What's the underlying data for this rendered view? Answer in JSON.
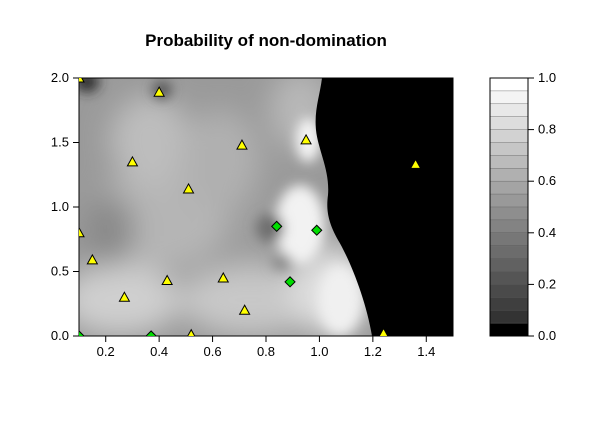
{
  "chart_data": {
    "type": "heatmap",
    "title": "Probability of non-domination",
    "xlabel": "",
    "ylabel": "",
    "xlim": [
      0.1,
      1.5
    ],
    "ylim": [
      0.0,
      2.0
    ],
    "x_ticks": [
      "0.2",
      "0.4",
      "0.6",
      "0.8",
      "1.0",
      "1.2",
      "1.4"
    ],
    "y_ticks": [
      "0.0",
      "0.5",
      "1.0",
      "1.5",
      "2.0"
    ],
    "colorbar": {
      "range": [
        0.0,
        1.0
      ],
      "levels": 20,
      "ticks": [
        "0.0",
        "0.2",
        "0.4",
        "0.6",
        "0.8",
        "1.0"
      ],
      "low_color": "#000000",
      "high_color": "#ffffff"
    },
    "series": [
      {
        "marker": "triangle",
        "color": "#ffff00",
        "points": [
          {
            "x": 0.1,
            "y": 2.0
          },
          {
            "x": 0.4,
            "y": 1.89
          },
          {
            "x": 0.3,
            "y": 1.35
          },
          {
            "x": 0.71,
            "y": 1.48
          },
          {
            "x": 0.95,
            "y": 1.52
          },
          {
            "x": 1.36,
            "y": 1.33
          },
          {
            "x": 0.51,
            "y": 1.14
          },
          {
            "x": 0.1,
            "y": 0.8
          },
          {
            "x": 0.15,
            "y": 0.59
          },
          {
            "x": 0.27,
            "y": 0.3
          },
          {
            "x": 0.43,
            "y": 0.43
          },
          {
            "x": 0.64,
            "y": 0.45
          },
          {
            "x": 0.72,
            "y": 0.2
          },
          {
            "x": 0.52,
            "y": 0.01
          },
          {
            "x": 1.24,
            "y": 0.02
          }
        ]
      },
      {
        "marker": "diamond",
        "color": "#00dd00",
        "points": [
          {
            "x": 0.84,
            "y": 0.85
          },
          {
            "x": 0.99,
            "y": 0.82
          },
          {
            "x": 0.89,
            "y": 0.42
          },
          {
            "x": 0.37,
            "y": 0.0
          },
          {
            "x": 0.1,
            "y": 0.0
          }
        ]
      }
    ]
  }
}
